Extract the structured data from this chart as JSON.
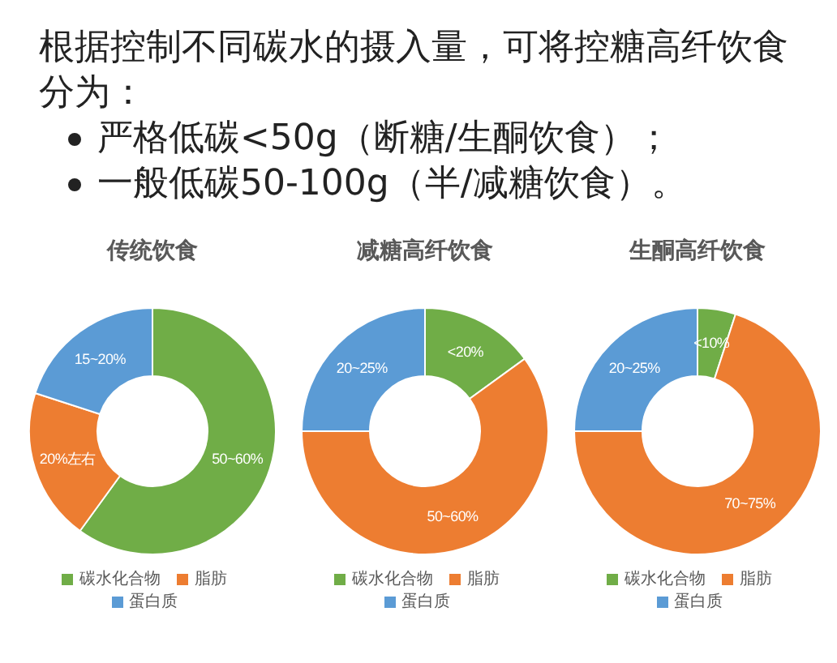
{
  "chart_data": [
    {
      "type": "donut",
      "title": "传统饮食",
      "annotations": [
        "根据控制不同碳水的摄入量，可将控糖高纤饮食分为：",
        "严格低碳<50g（断糖/生酮饮食）；",
        "一般低碳50-100g（半/减糖饮食）。"
      ],
      "categories": [
        "碳水化合物",
        "脂肪",
        "蛋白质"
      ],
      "values": [
        60,
        20,
        20
      ],
      "colors": [
        "#70ad47",
        "#ed7d31",
        "#5b9bd5"
      ],
      "value_labels": [
        "50~60%",
        "20%左右",
        "15~20%"
      ],
      "legend": "bottom"
    },
    {
      "type": "donut",
      "title": "减糖高纤饮食",
      "categories": [
        "碳水化合物",
        "脂肪",
        "蛋白质"
      ],
      "values": [
        15,
        60,
        25
      ],
      "colors": [
        "#70ad47",
        "#ed7d31",
        "#5b9bd5"
      ],
      "value_labels": [
        "<20%",
        "50~60%",
        "20~25%"
      ],
      "legend": "bottom"
    },
    {
      "type": "donut",
      "title": "生酮高纤饮食",
      "categories": [
        "碳水化合物",
        "脂肪",
        "蛋白质"
      ],
      "values": [
        5,
        70,
        25
      ],
      "colors": [
        "#70ad47",
        "#ed7d31",
        "#5b9bd5"
      ],
      "value_labels": [
        "<10%",
        "70~75%",
        "20~25%"
      ],
      "legend": "bottom"
    }
  ]
}
